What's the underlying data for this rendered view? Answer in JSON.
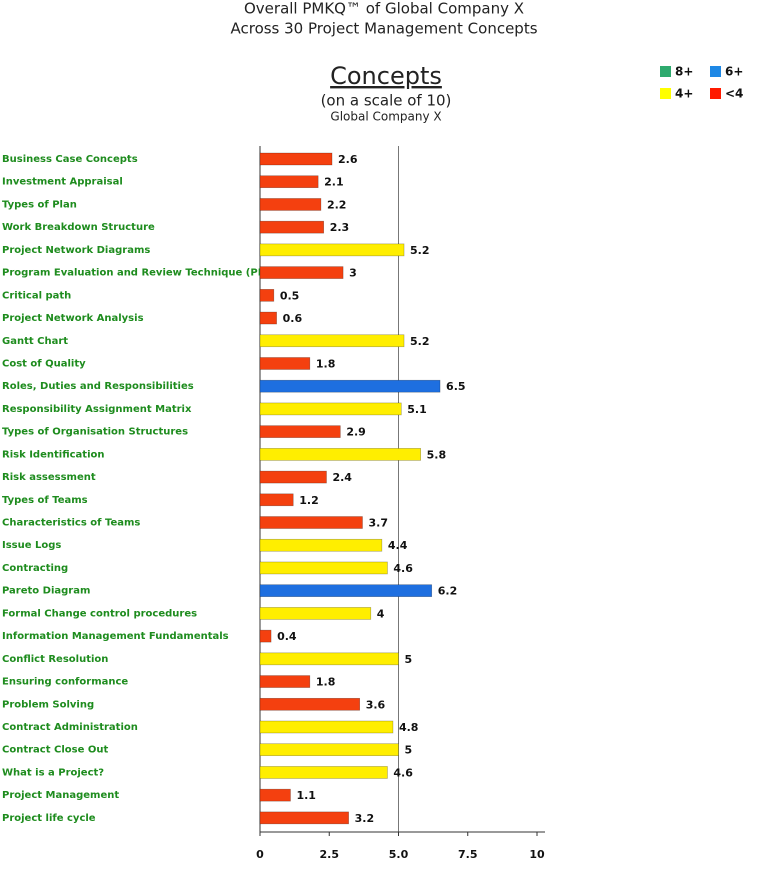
{
  "chart_data": {
    "type": "bar",
    "orientation": "horizontal",
    "title": "Overall PMKQ™ of Global Company X",
    "subtitle": "Across 30 Project Management Concepts",
    "chart_heading": "Concepts",
    "scale_note": "(on a scale of 10)",
    "company": "Global Company X",
    "legend": [
      {
        "name": "8+",
        "color": "#2eaa6e"
      },
      {
        "name": "6+",
        "color": "#1e88e5"
      },
      {
        "name": "4+",
        "color": "#ffff00"
      },
      {
        "name": "<4",
        "color": "#ff1a00"
      }
    ],
    "categories": [
      "Business Case Concepts",
      "Investment Appraisal",
      "Types of Plan",
      "Work Breakdown Structure",
      "Project Network Diagrams",
      "Program Evaluation and Review Technique (PERT)",
      "Critical path",
      "Project Network Analysis",
      "Gantt Chart",
      "Cost of Quality",
      "Roles, Duties and Responsibilities",
      "Responsibility Assignment Matrix",
      "Types of Organisation Structures",
      "Risk Identification",
      "Risk assessment",
      "Types of Teams",
      "Characteristics of Teams",
      "Issue Logs",
      "Contracting",
      "Pareto Diagram",
      "Formal Change control procedures",
      "Information Management Fundamentals",
      "Conflict Resolution",
      "Ensuring conformance",
      "Problem Solving",
      "Contract Administration",
      "Contract Close Out",
      "What is a Project?",
      "Project Management",
      "Project life cycle"
    ],
    "values": [
      2.6,
      2.1,
      2.2,
      2.3,
      5.2,
      3,
      0.5,
      0.6,
      5.2,
      1.8,
      6.5,
      5.1,
      2.9,
      5.8,
      2.4,
      1.2,
      3.7,
      4.4,
      4.6,
      6.2,
      4,
      0.4,
      5,
      1.8,
      3.6,
      4.8,
      5,
      4.6,
      1.1,
      3.2
    ],
    "colors": [
      "#f4400f",
      "#f4400f",
      "#f4400f",
      "#f4400f",
      "#ffee00",
      "#f4400f",
      "#f4400f",
      "#f4400f",
      "#ffee00",
      "#f4400f",
      "#1e6fe0",
      "#ffee00",
      "#f4400f",
      "#ffee00",
      "#f4400f",
      "#f4400f",
      "#f4400f",
      "#ffee00",
      "#ffee00",
      "#1e6fe0",
      "#ffee00",
      "#f4400f",
      "#ffee00",
      "#f4400f",
      "#f4400f",
      "#ffee00",
      "#ffee00",
      "#ffee00",
      "#f4400f",
      "#f4400f"
    ],
    "xlim": [
      0,
      10
    ],
    "xticks": [
      0,
      2.5,
      {
        "value": 5,
        "label": "5.0"
      },
      7.5,
      10
    ]
  }
}
